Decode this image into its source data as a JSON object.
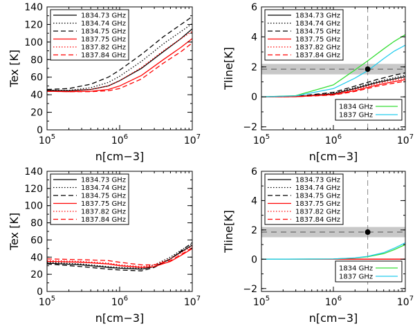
{
  "colors": {
    "black": "#000000",
    "red": "#ff0000",
    "green": "#33dd33",
    "cyan": "#22ccee",
    "band": "#c8c8c8",
    "gray_dash": "#888888"
  },
  "chart_data": [
    {
      "id": "p1",
      "type": "line",
      "xscale": "log",
      "xlabel": "n[cm−3]",
      "ylabel": "Tex [K]",
      "xlim": [
        100000,
        10000000
      ],
      "ylim": [
        0,
        140
      ],
      "xticks": [
        {
          "v": 100000,
          "b": "10",
          "e": "5"
        },
        {
          "v": 1000000,
          "b": "10",
          "e": "6"
        },
        {
          "v": 10000000,
          "b": "10",
          "e": "7"
        }
      ],
      "yticks": [
        {
          "v": 0,
          "t": "0"
        },
        {
          "v": 20,
          "t": "20"
        },
        {
          "v": 40,
          "t": "40"
        },
        {
          "v": 60,
          "t": "60"
        },
        {
          "v": 80,
          "t": "80"
        },
        {
          "v": 100,
          "t": "100"
        },
        {
          "v": 120,
          "t": "120"
        },
        {
          "v": 140,
          "t": "140"
        }
      ],
      "legend_pos": "top-left",
      "series": [
        {
          "name": "1834.73 GHz",
          "color": "#000000",
          "dash": "solid",
          "x": [
            100000,
            200000,
            400000,
            700000,
            1000000,
            2000000,
            4000000,
            7000000,
            10000000
          ],
          "y": [
            45,
            44.5,
            46,
            50,
            56,
            70,
            89,
            104,
            115
          ]
        },
        {
          "name": "1834.74 GHz",
          "color": "#000000",
          "dash": "dotted",
          "x": [
            100000,
            200000,
            400000,
            700000,
            1000000,
            2000000,
            4000000,
            7000000,
            10000000
          ],
          "y": [
            45,
            45,
            48,
            54,
            61,
            78,
            98,
            112,
            121
          ]
        },
        {
          "name": "1834.75 GHz",
          "color": "#000000",
          "dash": "dashed",
          "x": [
            100000,
            200000,
            400000,
            700000,
            1000000,
            2000000,
            4000000,
            7000000,
            10000000
          ],
          "y": [
            46,
            47,
            52,
            60,
            68,
            86,
            106,
            120,
            129
          ]
        },
        {
          "name": "1837.75 GHz",
          "color": "#ff0000",
          "dash": "solid",
          "x": [
            100000,
            200000,
            400000,
            700000,
            1000000,
            2000000,
            4000000,
            7000000,
            10000000
          ],
          "y": [
            44,
            43.5,
            44,
            46,
            50,
            62,
            80,
            94,
            104
          ]
        },
        {
          "name": "1837.82 GHz",
          "color": "#ff0000",
          "dash": "dotted",
          "x": [
            100000,
            200000,
            400000,
            700000,
            1000000,
            2000000,
            4000000,
            7000000,
            10000000
          ],
          "y": [
            44,
            44,
            46,
            50,
            56,
            71,
            90,
            104,
            112
          ]
        },
        {
          "name": "1837.84 GHz",
          "color": "#ff0000",
          "dash": "dashed",
          "x": [
            100000,
            200000,
            400000,
            700000,
            1000000,
            2000000,
            4000000,
            7000000,
            10000000
          ],
          "y": [
            44,
            43.5,
            43.5,
            44.5,
            47,
            58,
            76,
            89,
            99
          ]
        }
      ]
    },
    {
      "id": "p2",
      "type": "line",
      "xscale": "log",
      "xlabel": "n[cm−3]",
      "ylabel": "Tline[K]",
      "xlim": [
        100000,
        10000000
      ],
      "ylim": [
        -2.2,
        6
      ],
      "xticks": [
        {
          "v": 100000,
          "b": "10",
          "e": "5"
        },
        {
          "v": 1000000,
          "b": "10",
          "e": "6"
        },
        {
          "v": 10000000,
          "b": "10",
          "e": "7"
        }
      ],
      "yticks": [
        {
          "v": -2,
          "t": "−2"
        },
        {
          "v": 0,
          "t": "0"
        },
        {
          "v": 2,
          "t": "2"
        },
        {
          "v": 4,
          "t": "4"
        },
        {
          "v": 6,
          "t": "6"
        }
      ],
      "legend_pos": "top-left",
      "band": {
        "y1": 1.5,
        "y2": 2.2
      },
      "hline": 1.85,
      "vline": 3000000,
      "point": {
        "x": 3000000,
        "y": 1.85
      },
      "series": [
        {
          "name": "1834.73 GHz",
          "color": "#000000",
          "dash": "solid",
          "x": [
            100000,
            300000,
            1000000,
            2000000,
            4000000,
            7000000,
            10000000
          ],
          "y": [
            0,
            0.02,
            0.2,
            0.55,
            0.95,
            1.2,
            1.35
          ]
        },
        {
          "name": "1834.74 GHz",
          "color": "#000000",
          "dash": "dotted",
          "x": [
            100000,
            300000,
            1000000,
            2000000,
            4000000,
            7000000,
            10000000
          ],
          "y": [
            0,
            0.02,
            0.25,
            0.62,
            1.02,
            1.28,
            1.45
          ]
        },
        {
          "name": "1834.75 GHz",
          "color": "#000000",
          "dash": "dashed",
          "x": [
            100000,
            300000,
            1000000,
            2000000,
            4000000,
            7000000,
            10000000
          ],
          "y": [
            0,
            0.03,
            0.3,
            0.72,
            1.15,
            1.45,
            1.6
          ]
        },
        {
          "name": "1837.75 GHz",
          "color": "#ff0000",
          "dash": "solid",
          "x": [
            100000,
            300000,
            1000000,
            2000000,
            4000000,
            7000000,
            10000000
          ],
          "y": [
            0,
            0.01,
            0.15,
            0.42,
            0.78,
            1.02,
            1.15
          ]
        },
        {
          "name": "1837.82 GHz",
          "color": "#ff0000",
          "dash": "dotted",
          "x": [
            100000,
            300000,
            1000000,
            2000000,
            4000000,
            7000000,
            10000000
          ],
          "y": [
            0,
            0.02,
            0.2,
            0.5,
            0.88,
            1.12,
            1.25
          ]
        },
        {
          "name": "1837.84 GHz",
          "color": "#ff0000",
          "dash": "dashed",
          "x": [
            100000,
            300000,
            1000000,
            2000000,
            4000000,
            7000000,
            10000000
          ],
          "y": [
            0,
            0.01,
            0.12,
            0.36,
            0.7,
            0.92,
            1.05
          ]
        },
        {
          "name": "1834 GHz",
          "color": "#33dd33",
          "dash": "solid",
          "x": [
            100000,
            300000,
            1000000,
            2000000,
            3000000,
            5000000,
            7000000,
            10000000
          ],
          "y": [
            0,
            0.08,
            0.8,
            1.8,
            2.4,
            3.2,
            3.7,
            4.15
          ]
        },
        {
          "name": "1837 GHz",
          "color": "#22ccee",
          "dash": "solid",
          "x": [
            100000,
            300000,
            1000000,
            2000000,
            3000000,
            5000000,
            7000000,
            10000000
          ],
          "y": [
            0,
            0.06,
            0.55,
            1.25,
            1.75,
            2.55,
            3.05,
            3.45
          ]
        }
      ],
      "legend2_names": [
        "1834 GHz",
        "1837 GHz"
      ]
    },
    {
      "id": "p3",
      "type": "line",
      "xscale": "log",
      "xlabel": "n[cm−3]",
      "ylabel": "Tex [K]",
      "xlim": [
        100000,
        10000000
      ],
      "ylim": [
        0,
        140
      ],
      "xticks": [
        {
          "v": 100000,
          "b": "10",
          "e": "5"
        },
        {
          "v": 1000000,
          "b": "10",
          "e": "6"
        },
        {
          "v": 10000000,
          "b": "10",
          "e": "7"
        }
      ],
      "yticks": [
        {
          "v": 0,
          "t": "0"
        },
        {
          "v": 20,
          "t": "20"
        },
        {
          "v": 40,
          "t": "40"
        },
        {
          "v": 60,
          "t": "60"
        },
        {
          "v": 80,
          "t": "80"
        },
        {
          "v": 100,
          "t": "100"
        },
        {
          "v": 120,
          "t": "120"
        },
        {
          "v": 140,
          "t": "140"
        }
      ],
      "legend_pos": "top-left",
      "series": [
        {
          "name": "1834.73 GHz",
          "color": "#000000",
          "dash": "solid",
          "x": [
            100000,
            300000,
            700000,
            1000000,
            2000000,
            3000000,
            5000000,
            7000000,
            10000000
          ],
          "y": [
            33,
            31,
            28,
            27,
            26,
            29,
            38,
            46,
            54
          ]
        },
        {
          "name": "1834.74 GHz",
          "color": "#000000",
          "dash": "dotted",
          "x": [
            100000,
            300000,
            700000,
            1000000,
            2000000,
            3000000,
            5000000,
            7000000,
            10000000
          ],
          "y": [
            34,
            32,
            29,
            28,
            27,
            31,
            40,
            48,
            56
          ]
        },
        {
          "name": "1834.75 GHz",
          "color": "#000000",
          "dash": "dashed",
          "x": [
            100000,
            300000,
            700000,
            1000000,
            2000000,
            3000000,
            5000000,
            7000000,
            10000000
          ],
          "y": [
            32,
            29,
            26,
            25,
            24,
            28,
            38,
            47,
            57
          ]
        },
        {
          "name": "1837.75 GHz",
          "color": "#ff0000",
          "dash": "solid",
          "x": [
            100000,
            300000,
            700000,
            1000000,
            2000000,
            3000000,
            5000000,
            7000000,
            10000000
          ],
          "y": [
            35,
            34,
            32,
            30,
            28,
            29,
            35,
            42,
            50
          ]
        },
        {
          "name": "1837.82 GHz",
          "color": "#ff0000",
          "dash": "dotted",
          "x": [
            100000,
            300000,
            700000,
            1000000,
            2000000,
            3000000,
            5000000,
            7000000,
            10000000
          ],
          "y": [
            36,
            35,
            33,
            31,
            29,
            31,
            38,
            45,
            53
          ]
        },
        {
          "name": "1837.84 GHz",
          "color": "#ff0000",
          "dash": "dashed",
          "x": [
            100000,
            300000,
            700000,
            1000000,
            2000000,
            3000000,
            5000000,
            7000000,
            10000000
          ],
          "y": [
            38,
            37,
            36,
            34,
            31,
            31,
            36,
            43,
            51
          ]
        }
      ]
    },
    {
      "id": "p4",
      "type": "line",
      "xscale": "log",
      "xlabel": "n[cm−3]",
      "ylabel": "Tline[K]",
      "xlim": [
        100000,
        10000000
      ],
      "ylim": [
        -2.2,
        6
      ],
      "xticks": [
        {
          "v": 100000,
          "b": "10",
          "e": "5"
        },
        {
          "v": 1000000,
          "b": "10",
          "e": "6"
        },
        {
          "v": 10000000,
          "b": "10",
          "e": "7"
        }
      ],
      "yticks": [
        {
          "v": -2,
          "t": "−2"
        },
        {
          "v": 0,
          "t": "0"
        },
        {
          "v": 2,
          "t": "2"
        },
        {
          "v": 4,
          "t": "4"
        },
        {
          "v": 6,
          "t": "6"
        }
      ],
      "legend_pos": "top-left",
      "band": {
        "y1": 1.5,
        "y2": 2.2
      },
      "hline": 1.85,
      "vline": 3000000,
      "point": {
        "x": 3000000,
        "y": 1.85
      },
      "series": [
        {
          "name": "1834.73 GHz",
          "color": "#000000",
          "dash": "solid",
          "x": [
            100000,
            1000000,
            3000000,
            10000000
          ],
          "y": [
            0,
            0,
            0,
            0
          ]
        },
        {
          "name": "1834.74 GHz",
          "color": "#000000",
          "dash": "dotted",
          "x": [
            100000,
            1000000,
            3000000,
            10000000
          ],
          "y": [
            0,
            0,
            0,
            0
          ]
        },
        {
          "name": "1834.75 GHz",
          "color": "#000000",
          "dash": "dashed",
          "x": [
            100000,
            1000000,
            3000000,
            10000000
          ],
          "y": [
            0,
            0,
            0,
            0
          ]
        },
        {
          "name": "1837.75 GHz",
          "color": "#ff0000",
          "dash": "solid",
          "x": [
            100000,
            1000000,
            3000000,
            10000000
          ],
          "y": [
            0,
            0,
            0,
            0
          ]
        },
        {
          "name": "1837.82 GHz",
          "color": "#ff0000",
          "dash": "dotted",
          "x": [
            100000,
            1000000,
            3000000,
            10000000
          ],
          "y": [
            0,
            0,
            0,
            0
          ]
        },
        {
          "name": "1837.84 GHz",
          "color": "#ff0000",
          "dash": "dashed",
          "x": [
            100000,
            1000000,
            3000000,
            10000000
          ],
          "y": [
            0,
            0,
            0,
            0
          ]
        },
        {
          "name": "1834 GHz",
          "color": "#33dd33",
          "dash": "solid",
          "x": [
            100000,
            1000000,
            2000000,
            3000000,
            5000000,
            7000000,
            10000000
          ],
          "y": [
            0,
            0.02,
            0.08,
            0.17,
            0.38,
            0.65,
            1.0
          ]
        },
        {
          "name": "1837 GHz",
          "color": "#22ccee",
          "dash": "solid",
          "x": [
            100000,
            1000000,
            2000000,
            3000000,
            5000000,
            7000000,
            10000000
          ],
          "y": [
            0,
            0.02,
            0.09,
            0.2,
            0.45,
            0.75,
            1.12
          ]
        }
      ],
      "legend2_names": [
        "1834 GHz",
        "1837 GHz"
      ]
    }
  ]
}
